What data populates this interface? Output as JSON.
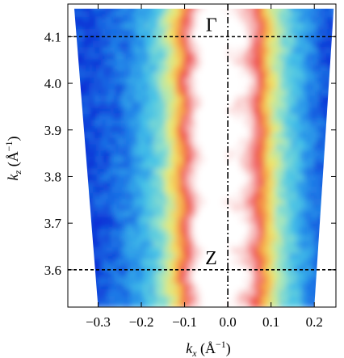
{
  "chart_data": {
    "type": "heatmap",
    "title": "",
    "xlabel": {
      "k": "k",
      "sub": "x",
      "unit_open": " (Å",
      "unit_sup": "−1",
      "unit_close": ")"
    },
    "ylabel": {
      "k": "k",
      "sub": "z",
      "unit_open": " (Å",
      "unit_sup": "−1",
      "unit_close": ")"
    },
    "xlim": [
      -0.37,
      0.25
    ],
    "ylim": [
      3.52,
      4.17
    ],
    "x_ticks": [
      -0.3,
      -0.2,
      -0.1,
      0.0,
      0.1,
      0.2
    ],
    "x_tick_labels": [
      "−0.3",
      "−0.2",
      "−0.1",
      "0.0",
      "0.1",
      "0.2"
    ],
    "y_ticks": [
      3.6,
      3.7,
      3.8,
      3.9,
      4.0,
      4.1
    ],
    "y_tick_labels": [
      "3.6",
      "3.7",
      "3.8",
      "3.9",
      "4.0",
      "4.1"
    ],
    "grid": false,
    "colormap": [
      "#0a2fd6",
      "#1e7ee8",
      "#43c2e8",
      "#9ee6c4",
      "#f2e86a",
      "#f7a646",
      "#ee4c4c",
      "#f6b0b0",
      "#ffffff"
    ],
    "domain_edges": {
      "left": {
        "top": [
          -0.355,
          4.16
        ],
        "bottom": [
          -0.3,
          3.52
        ]
      },
      "right": {
        "top": [
          0.245,
          4.16
        ],
        "bottom": [
          0.2,
          3.52
        ]
      }
    },
    "intensity_ridges": [
      {
        "center_kx": -0.035,
        "width": 0.07
      },
      {
        "center_kx": 0.05,
        "width": 0.05
      }
    ],
    "annotations": [
      {
        "text": "Γ",
        "kx": -0.025,
        "kz": 4.1
      },
      {
        "text": "Z",
        "kx": -0.025,
        "kz": 3.6
      }
    ],
    "reference_lines": [
      {
        "orientation": "horizontal",
        "value": 4.1,
        "style": "dashed"
      },
      {
        "orientation": "horizontal",
        "value": 3.6,
        "style": "dashed"
      },
      {
        "orientation": "vertical",
        "value": 0.0,
        "style": "dash-dot"
      }
    ]
  }
}
